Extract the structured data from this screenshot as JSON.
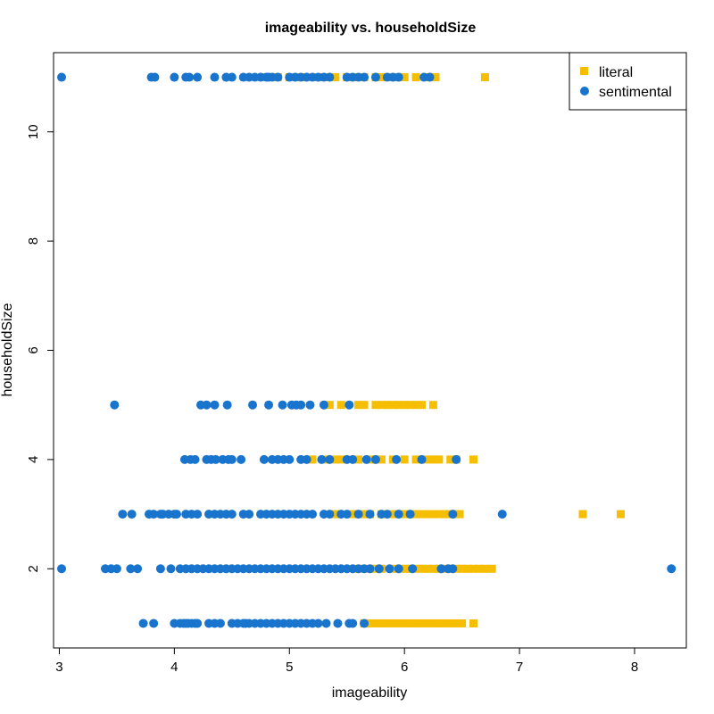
{
  "chart_data": {
    "type": "scatter",
    "title": "imageability vs. householdSize",
    "xlabel": "imageability",
    "ylabel": "householdSize",
    "xlim": [
      2.95,
      8.45
    ],
    "ylim": [
      0.55,
      11.45
    ],
    "x_ticks": [
      3,
      4,
      5,
      6,
      7,
      8
    ],
    "y_ticks": [
      2,
      4,
      6,
      8,
      10
    ],
    "grid": false,
    "legend_position": "top-right",
    "series": [
      {
        "name": "literal",
        "marker": "square",
        "color": "#F5BE00",
        "points": [
          [
            4.8,
            11
          ],
          [
            4.9,
            11
          ],
          [
            5.0,
            11
          ],
          [
            5.1,
            11
          ],
          [
            5.25,
            11
          ],
          [
            5.3,
            11
          ],
          [
            5.4,
            11
          ],
          [
            5.5,
            11
          ],
          [
            5.6,
            11
          ],
          [
            5.65,
            11
          ],
          [
            5.75,
            11
          ],
          [
            5.8,
            11
          ],
          [
            5.9,
            11
          ],
          [
            6.0,
            11
          ],
          [
            6.1,
            11
          ],
          [
            6.2,
            11
          ],
          [
            6.27,
            11
          ],
          [
            6.7,
            11
          ],
          [
            5.35,
            5
          ],
          [
            5.45,
            5
          ],
          [
            5.6,
            5
          ],
          [
            5.65,
            5
          ],
          [
            5.75,
            5
          ],
          [
            5.8,
            5
          ],
          [
            5.85,
            5
          ],
          [
            5.9,
            5
          ],
          [
            5.95,
            5
          ],
          [
            6.0,
            5
          ],
          [
            6.05,
            5
          ],
          [
            6.1,
            5
          ],
          [
            6.15,
            5
          ],
          [
            6.25,
            5
          ],
          [
            5.2,
            4
          ],
          [
            5.3,
            4
          ],
          [
            5.4,
            4
          ],
          [
            5.45,
            4
          ],
          [
            5.6,
            4
          ],
          [
            5.7,
            4
          ],
          [
            5.75,
            4
          ],
          [
            5.8,
            4
          ],
          [
            5.9,
            4
          ],
          [
            6.0,
            4
          ],
          [
            6.1,
            4
          ],
          [
            6.2,
            4
          ],
          [
            6.25,
            4
          ],
          [
            6.3,
            4
          ],
          [
            6.4,
            4
          ],
          [
            6.45,
            4
          ],
          [
            6.6,
            4
          ],
          [
            5.4,
            3
          ],
          [
            5.55,
            3
          ],
          [
            5.65,
            3
          ],
          [
            5.7,
            3
          ],
          [
            5.8,
            3
          ],
          [
            5.9,
            3
          ],
          [
            6.0,
            3
          ],
          [
            6.05,
            3
          ],
          [
            6.1,
            3
          ],
          [
            6.15,
            3
          ],
          [
            6.2,
            3
          ],
          [
            6.25,
            3
          ],
          [
            6.3,
            3
          ],
          [
            6.35,
            3
          ],
          [
            6.4,
            3
          ],
          [
            6.45,
            3
          ],
          [
            6.48,
            3
          ],
          [
            7.55,
            3
          ],
          [
            7.88,
            3
          ],
          [
            5.6,
            2
          ],
          [
            5.7,
            2
          ],
          [
            5.75,
            2
          ],
          [
            5.8,
            2
          ],
          [
            5.9,
            2
          ],
          [
            6.0,
            2
          ],
          [
            6.05,
            2
          ],
          [
            6.1,
            2
          ],
          [
            6.15,
            2
          ],
          [
            6.2,
            2
          ],
          [
            6.25,
            2
          ],
          [
            6.3,
            2
          ],
          [
            6.35,
            2
          ],
          [
            6.4,
            2
          ],
          [
            6.45,
            2
          ],
          [
            6.5,
            2
          ],
          [
            6.55,
            2
          ],
          [
            6.6,
            2
          ],
          [
            6.65,
            2
          ],
          [
            6.7,
            2
          ],
          [
            6.76,
            2
          ],
          [
            5.65,
            1
          ],
          [
            5.7,
            1
          ],
          [
            5.75,
            1
          ],
          [
            5.8,
            1
          ],
          [
            5.85,
            1
          ],
          [
            5.9,
            1
          ],
          [
            5.95,
            1
          ],
          [
            6.0,
            1
          ],
          [
            6.05,
            1
          ],
          [
            6.1,
            1
          ],
          [
            6.15,
            1
          ],
          [
            6.2,
            1
          ],
          [
            6.25,
            1
          ],
          [
            6.3,
            1
          ],
          [
            6.35,
            1
          ],
          [
            6.4,
            1
          ],
          [
            6.45,
            1
          ],
          [
            6.5,
            1
          ],
          [
            6.6,
            1
          ]
        ]
      },
      {
        "name": "sentimental",
        "marker": "circle",
        "color": "#1874CD",
        "points": [
          [
            3.02,
            11
          ],
          [
            3.8,
            11
          ],
          [
            3.83,
            11
          ],
          [
            4.0,
            11
          ],
          [
            4.1,
            11
          ],
          [
            4.13,
            11
          ],
          [
            4.2,
            11
          ],
          [
            4.35,
            11
          ],
          [
            4.45,
            11
          ],
          [
            4.5,
            11
          ],
          [
            4.6,
            11
          ],
          [
            4.65,
            11
          ],
          [
            4.7,
            11
          ],
          [
            4.75,
            11
          ],
          [
            4.8,
            11
          ],
          [
            4.82,
            11
          ],
          [
            4.85,
            11
          ],
          [
            4.9,
            11
          ],
          [
            5.0,
            11
          ],
          [
            5.05,
            11
          ],
          [
            5.1,
            11
          ],
          [
            5.15,
            11
          ],
          [
            5.2,
            11
          ],
          [
            5.25,
            11
          ],
          [
            5.3,
            11
          ],
          [
            5.35,
            11
          ],
          [
            5.5,
            11
          ],
          [
            5.55,
            11
          ],
          [
            5.6,
            11
          ],
          [
            5.65,
            11
          ],
          [
            5.75,
            11
          ],
          [
            5.85,
            11
          ],
          [
            5.9,
            11
          ],
          [
            5.95,
            11
          ],
          [
            6.17,
            11
          ],
          [
            6.22,
            11
          ],
          [
            3.48,
            5
          ],
          [
            4.23,
            5
          ],
          [
            4.28,
            5
          ],
          [
            4.35,
            5
          ],
          [
            4.46,
            5
          ],
          [
            4.68,
            5
          ],
          [
            4.82,
            5
          ],
          [
            4.94,
            5
          ],
          [
            5.02,
            5
          ],
          [
            5.06,
            5
          ],
          [
            5.1,
            5
          ],
          [
            5.18,
            5
          ],
          [
            5.3,
            5
          ],
          [
            5.52,
            5
          ],
          [
            4.09,
            4
          ],
          [
            4.14,
            4
          ],
          [
            4.18,
            4
          ],
          [
            4.28,
            4
          ],
          [
            4.32,
            4
          ],
          [
            4.36,
            4
          ],
          [
            4.42,
            4
          ],
          [
            4.47,
            4
          ],
          [
            4.5,
            4
          ],
          [
            4.58,
            4
          ],
          [
            4.78,
            4
          ],
          [
            4.85,
            4
          ],
          [
            4.9,
            4
          ],
          [
            4.95,
            4
          ],
          [
            5.0,
            4
          ],
          [
            5.1,
            4
          ],
          [
            5.15,
            4
          ],
          [
            5.28,
            4
          ],
          [
            5.35,
            4
          ],
          [
            5.5,
            4
          ],
          [
            5.55,
            4
          ],
          [
            5.67,
            4
          ],
          [
            5.75,
            4
          ],
          [
            5.93,
            4
          ],
          [
            6.15,
            4
          ],
          [
            6.45,
            4
          ],
          [
            3.55,
            3
          ],
          [
            3.63,
            3
          ],
          [
            3.78,
            3
          ],
          [
            3.82,
            3
          ],
          [
            3.88,
            3
          ],
          [
            3.9,
            3
          ],
          [
            3.95,
            3
          ],
          [
            4.0,
            3
          ],
          [
            4.02,
            3
          ],
          [
            4.1,
            3
          ],
          [
            4.15,
            3
          ],
          [
            4.2,
            3
          ],
          [
            4.3,
            3
          ],
          [
            4.35,
            3
          ],
          [
            4.4,
            3
          ],
          [
            4.45,
            3
          ],
          [
            4.5,
            3
          ],
          [
            4.6,
            3
          ],
          [
            4.65,
            3
          ],
          [
            4.75,
            3
          ],
          [
            4.8,
            3
          ],
          [
            4.85,
            3
          ],
          [
            4.9,
            3
          ],
          [
            4.95,
            3
          ],
          [
            5.0,
            3
          ],
          [
            5.05,
            3
          ],
          [
            5.1,
            3
          ],
          [
            5.15,
            3
          ],
          [
            5.2,
            3
          ],
          [
            5.3,
            3
          ],
          [
            5.35,
            3
          ],
          [
            5.45,
            3
          ],
          [
            5.5,
            3
          ],
          [
            5.6,
            3
          ],
          [
            5.7,
            3
          ],
          [
            5.8,
            3
          ],
          [
            5.85,
            3
          ],
          [
            5.95,
            3
          ],
          [
            6.05,
            3
          ],
          [
            6.42,
            3
          ],
          [
            6.85,
            3
          ],
          [
            3.02,
            2
          ],
          [
            3.4,
            2
          ],
          [
            3.45,
            2
          ],
          [
            3.5,
            2
          ],
          [
            3.62,
            2
          ],
          [
            3.68,
            2
          ],
          [
            3.88,
            2
          ],
          [
            3.97,
            2
          ],
          [
            4.05,
            2
          ],
          [
            4.1,
            2
          ],
          [
            4.15,
            2
          ],
          [
            4.2,
            2
          ],
          [
            4.25,
            2
          ],
          [
            4.3,
            2
          ],
          [
            4.35,
            2
          ],
          [
            4.4,
            2
          ],
          [
            4.45,
            2
          ],
          [
            4.5,
            2
          ],
          [
            4.55,
            2
          ],
          [
            4.6,
            2
          ],
          [
            4.65,
            2
          ],
          [
            4.7,
            2
          ],
          [
            4.75,
            2
          ],
          [
            4.8,
            2
          ],
          [
            4.85,
            2
          ],
          [
            4.9,
            2
          ],
          [
            4.95,
            2
          ],
          [
            5.0,
            2
          ],
          [
            5.05,
            2
          ],
          [
            5.1,
            2
          ],
          [
            5.15,
            2
          ],
          [
            5.2,
            2
          ],
          [
            5.25,
            2
          ],
          [
            5.3,
            2
          ],
          [
            5.35,
            2
          ],
          [
            5.4,
            2
          ],
          [
            5.45,
            2
          ],
          [
            5.5,
            2
          ],
          [
            5.55,
            2
          ],
          [
            5.6,
            2
          ],
          [
            5.65,
            2
          ],
          [
            5.7,
            2
          ],
          [
            5.78,
            2
          ],
          [
            5.87,
            2
          ],
          [
            5.95,
            2
          ],
          [
            6.07,
            2
          ],
          [
            6.32,
            2
          ],
          [
            6.38,
            2
          ],
          [
            6.42,
            2
          ],
          [
            8.32,
            2
          ],
          [
            3.73,
            1
          ],
          [
            3.82,
            1
          ],
          [
            4.0,
            1
          ],
          [
            4.05,
            1
          ],
          [
            4.08,
            1
          ],
          [
            4.1,
            1
          ],
          [
            4.12,
            1
          ],
          [
            4.15,
            1
          ],
          [
            4.18,
            1
          ],
          [
            4.2,
            1
          ],
          [
            4.3,
            1
          ],
          [
            4.35,
            1
          ],
          [
            4.4,
            1
          ],
          [
            4.5,
            1
          ],
          [
            4.55,
            1
          ],
          [
            4.6,
            1
          ],
          [
            4.62,
            1
          ],
          [
            4.65,
            1
          ],
          [
            4.7,
            1
          ],
          [
            4.75,
            1
          ],
          [
            4.8,
            1
          ],
          [
            4.85,
            1
          ],
          [
            4.9,
            1
          ],
          [
            4.95,
            1
          ],
          [
            5.0,
            1
          ],
          [
            5.05,
            1
          ],
          [
            5.1,
            1
          ],
          [
            5.15,
            1
          ],
          [
            5.2,
            1
          ],
          [
            5.25,
            1
          ],
          [
            5.32,
            1
          ],
          [
            5.42,
            1
          ],
          [
            5.52,
            1
          ],
          [
            5.55,
            1
          ],
          [
            5.65,
            1
          ]
        ]
      }
    ]
  }
}
